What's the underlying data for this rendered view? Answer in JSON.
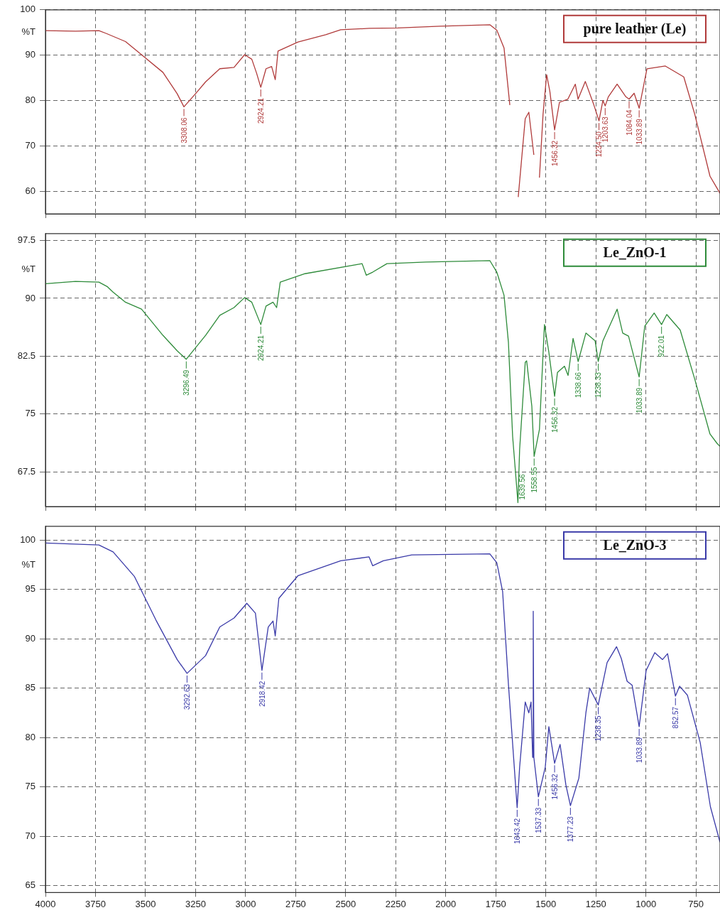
{
  "chart_data": [
    {
      "type": "line",
      "ylabel": "%T",
      "xlim": [
        4000,
        630
      ],
      "ylim": [
        55,
        100
      ],
      "xticks": [
        4000,
        3750,
        3500,
        3250,
        3000,
        2750,
        2500,
        2250,
        2000,
        1750,
        1500,
        1250,
        1000,
        750
      ],
      "yticks": [
        100,
        90,
        80,
        70,
        60
      ],
      "tick_labels": "y",
      "grid": true,
      "legend": "top right",
      "marker": "none",
      "line_style": "solid",
      "series": [
        {
          "name": "pure leather (Le)",
          "color": "#b03a3a",
          "x": [
            4000,
            3850,
            3733,
            3697,
            3600,
            3520,
            3413,
            3342,
            3308.06,
            3250,
            3200,
            3129,
            3058,
            3005,
            2969,
            2945,
            2924.21,
            2898,
            2870,
            2852,
            2838,
            2738,
            2600,
            2525,
            2383,
            2241,
            2028,
            1780,
            1745,
            1709,
            1680,
            1652,
            1638,
            1603,
            1585,
            1560,
            1549,
            1532,
            1514,
            1496,
            1480,
            1456.32,
            1432,
            1390,
            1353,
            1339,
            1303,
            1260,
            1234.5,
            1215,
            1203.63,
            1188,
            1144,
            1100,
            1084.04,
            1059,
            1033.89,
            995,
            903,
            811,
            757,
            680,
            636,
            630
          ],
          "values": [
            95.4,
            95.3,
            95.4,
            94.8,
            93,
            90.1,
            86.2,
            81.5,
            78.6,
            81.5,
            84.1,
            87,
            87.3,
            90.1,
            89.1,
            86,
            82.9,
            87,
            87.5,
            84.6,
            90.9,
            92.9,
            94.5,
            95.6,
            95.9,
            96,
            96.4,
            96.7,
            95.5,
            91.6,
            79,
            null,
            58.7,
            76,
            77.4,
            68,
            null,
            63,
            77,
            85.7,
            82,
            73.5,
            79.6,
            80.3,
            83.6,
            80.3,
            84.2,
            79,
            75.5,
            80,
            78.8,
            80.8,
            83.6,
            80.8,
            80.3,
            81.6,
            78.3,
            87,
            87.6,
            85.2,
            77.1,
            63.3,
            60,
            59.5
          ]
        }
      ],
      "annotations": [
        {
          "text": "3308.06",
          "x": 3308.06,
          "y": 78.6
        },
        {
          "text": "2924.21",
          "x": 2924.21,
          "y": 82.9
        },
        {
          "text": "1456.32",
          "x": 1456.32,
          "y": 73.5
        },
        {
          "text": "1234.50",
          "x": 1234.5,
          "y": 75.5
        },
        {
          "text": "1203.63",
          "x": 1203.63,
          "y": 78.8
        },
        {
          "text": "1084.04",
          "x": 1084.04,
          "y": 80.3
        },
        {
          "text": "1033.89",
          "x": 1033.89,
          "y": 78.3
        }
      ]
    },
    {
      "type": "line",
      "ylabel": "%T",
      "xlim": [
        4000,
        630
      ],
      "ylim": [
        63,
        98.4
      ],
      "xticks": [
        4000,
        3750,
        3500,
        3250,
        3000,
        2750,
        2500,
        2250,
        2000,
        1750,
        1500,
        1250,
        1000,
        750
      ],
      "yticks": [
        97.5,
        90,
        82.5,
        75,
        67.5
      ],
      "tick_labels": "y",
      "grid": true,
      "legend": "top right",
      "marker": "none",
      "line_style": "solid",
      "series": [
        {
          "name": "Le_ZnO-1",
          "color": "#2e8b3a",
          "x": [
            4000,
            3850,
            3733,
            3690,
            3662,
            3600,
            3520,
            3413,
            3342,
            3296.49,
            3200,
            3129,
            3058,
            3005,
            2969,
            2924.21,
            2898,
            2863,
            2845,
            2827,
            2703,
            2418,
            2397,
            2365,
            2294,
            2099,
            1780,
            1745,
            1709,
            1687,
            1666,
            1639.56,
            1631,
            1603,
            1596,
            1570,
            1558.55,
            1532,
            1507,
            1485,
            1456.32,
            1442,
            1407,
            1389,
            1364,
            1338.66,
            1300,
            1254,
            1238.33,
            1215,
            1144,
            1116,
            1087,
            1033.89,
            1006,
            959,
            922.01,
            896,
            829,
            757,
            680,
            645,
            630
          ],
          "values": [
            91.9,
            92.2,
            92.1,
            91.5,
            90.8,
            89.5,
            88.6,
            85.2,
            83.2,
            82.1,
            85.2,
            87.8,
            88.8,
            90.1,
            89.5,
            86.6,
            89,
            89.5,
            88.8,
            92.1,
            93.2,
            94.5,
            93,
            93.4,
            94.5,
            94.7,
            94.9,
            93.4,
            90.4,
            84.3,
            72.1,
            63.5,
            70.4,
            81.7,
            81.9,
            76,
            69.5,
            73,
            86.6,
            83,
            77.3,
            80.4,
            81.2,
            80,
            84.8,
            81.8,
            85.5,
            84.5,
            81.8,
            84.5,
            88.6,
            85.5,
            85.1,
            79.8,
            86.4,
            88.1,
            86.6,
            87.9,
            85.9,
            79.6,
            72.4,
            71.2,
            70.8
          ]
        }
      ],
      "annotations": [
        {
          "text": "3296.49",
          "x": 3296.49,
          "y": 82.1
        },
        {
          "text": "2924.21",
          "x": 2924.21,
          "y": 86.6
        },
        {
          "text": "1639.56",
          "x": 1639.56,
          "y": 63.5
        },
        {
          "text": "1558.55",
          "x": 1558.55,
          "y": 69.5
        },
        {
          "text": "1456.32",
          "x": 1456.32,
          "y": 77.3
        },
        {
          "text": "1338.66",
          "x": 1338.66,
          "y": 81.8
        },
        {
          "text": "1238.33",
          "x": 1238.33,
          "y": 81.8
        },
        {
          "text": "1033.89",
          "x": 1033.89,
          "y": 79.8
        },
        {
          "text": "922.01",
          "x": 922.01,
          "y": 86.6
        }
      ]
    },
    {
      "type": "line",
      "ylabel": "%T",
      "xlim": [
        4000,
        630
      ],
      "ylim": [
        64.3,
        101.4
      ],
      "xticks": [
        4000,
        3750,
        3500,
        3250,
        3000,
        2750,
        2500,
        2250,
        2000,
        1750,
        1500,
        1250,
        1000,
        750
      ],
      "yticks": [
        100,
        95,
        90,
        85,
        80,
        75,
        70,
        65
      ],
      "grid": true,
      "legend": "top right",
      "marker": "none",
      "line_style": "solid",
      "series": [
        {
          "name": "Le_ZnO-3",
          "color": "#3a3aa8",
          "x": [
            4000,
            3733,
            3662,
            3555,
            3448,
            3342,
            3292.63,
            3200,
            3129,
            3058,
            2994,
            2951,
            2918.42,
            2887,
            2863,
            2852,
            2834,
            2738,
            2525,
            2383,
            2365,
            2312,
            2170,
            1780,
            1745,
            1716,
            1687,
            1643.42,
            1631,
            1603,
            1585,
            1574,
            1566,
            1563,
            1560,
            1537.33,
            1503,
            1485,
            1456.32,
            1429,
            1400,
            1377.23,
            1335,
            1300,
            1281,
            1238.35,
            1194,
            1147,
            1123,
            1094,
            1069,
            1033.89,
            999,
            956,
            917,
            892,
            852.57,
            832,
            793,
            729,
            678,
            630
          ],
          "values": [
            99.7,
            99.5,
            98.8,
            96.3,
            91.9,
            87.9,
            86.5,
            88.3,
            91.2,
            92.1,
            93.6,
            92.6,
            86.8,
            91.2,
            91.8,
            90.3,
            94.1,
            96.4,
            97.9,
            98.3,
            97.4,
            97.9,
            98.5,
            98.6,
            97.7,
            94.8,
            85.4,
            72.9,
            77,
            83.6,
            82.5,
            83.6,
            78,
            92.8,
            78,
            74,
            77,
            81.1,
            77.4,
            79.3,
            75.2,
            73.1,
            75.9,
            82.5,
            85,
            83.3,
            87.6,
            89.2,
            88,
            85.7,
            85.3,
            81.1,
            86.8,
            88.6,
            87.9,
            88.5,
            84.2,
            85.2,
            84.3,
            79.5,
            73,
            69.4
          ]
        }
      ],
      "annotations": [
        {
          "text": "3292.63",
          "x": 3292.63,
          "y": 86.5
        },
        {
          "text": "2918.42",
          "x": 2918.42,
          "y": 86.8
        },
        {
          "text": "1643.42",
          "x": 1643.42,
          "y": 72.9
        },
        {
          "text": "1537.33",
          "x": 1537.33,
          "y": 74
        },
        {
          "text": "1456.32",
          "x": 1456.32,
          "y": 77.4
        },
        {
          "text": "1377.23",
          "x": 1377.23,
          "y": 73.1
        },
        {
          "text": "1238.35",
          "x": 1238.35,
          "y": 83.3
        },
        {
          "text": "1033.89",
          "x": 1033.89,
          "y": 81.1
        },
        {
          "text": "852.57",
          "x": 852.57,
          "y": 84.2
        }
      ]
    }
  ]
}
